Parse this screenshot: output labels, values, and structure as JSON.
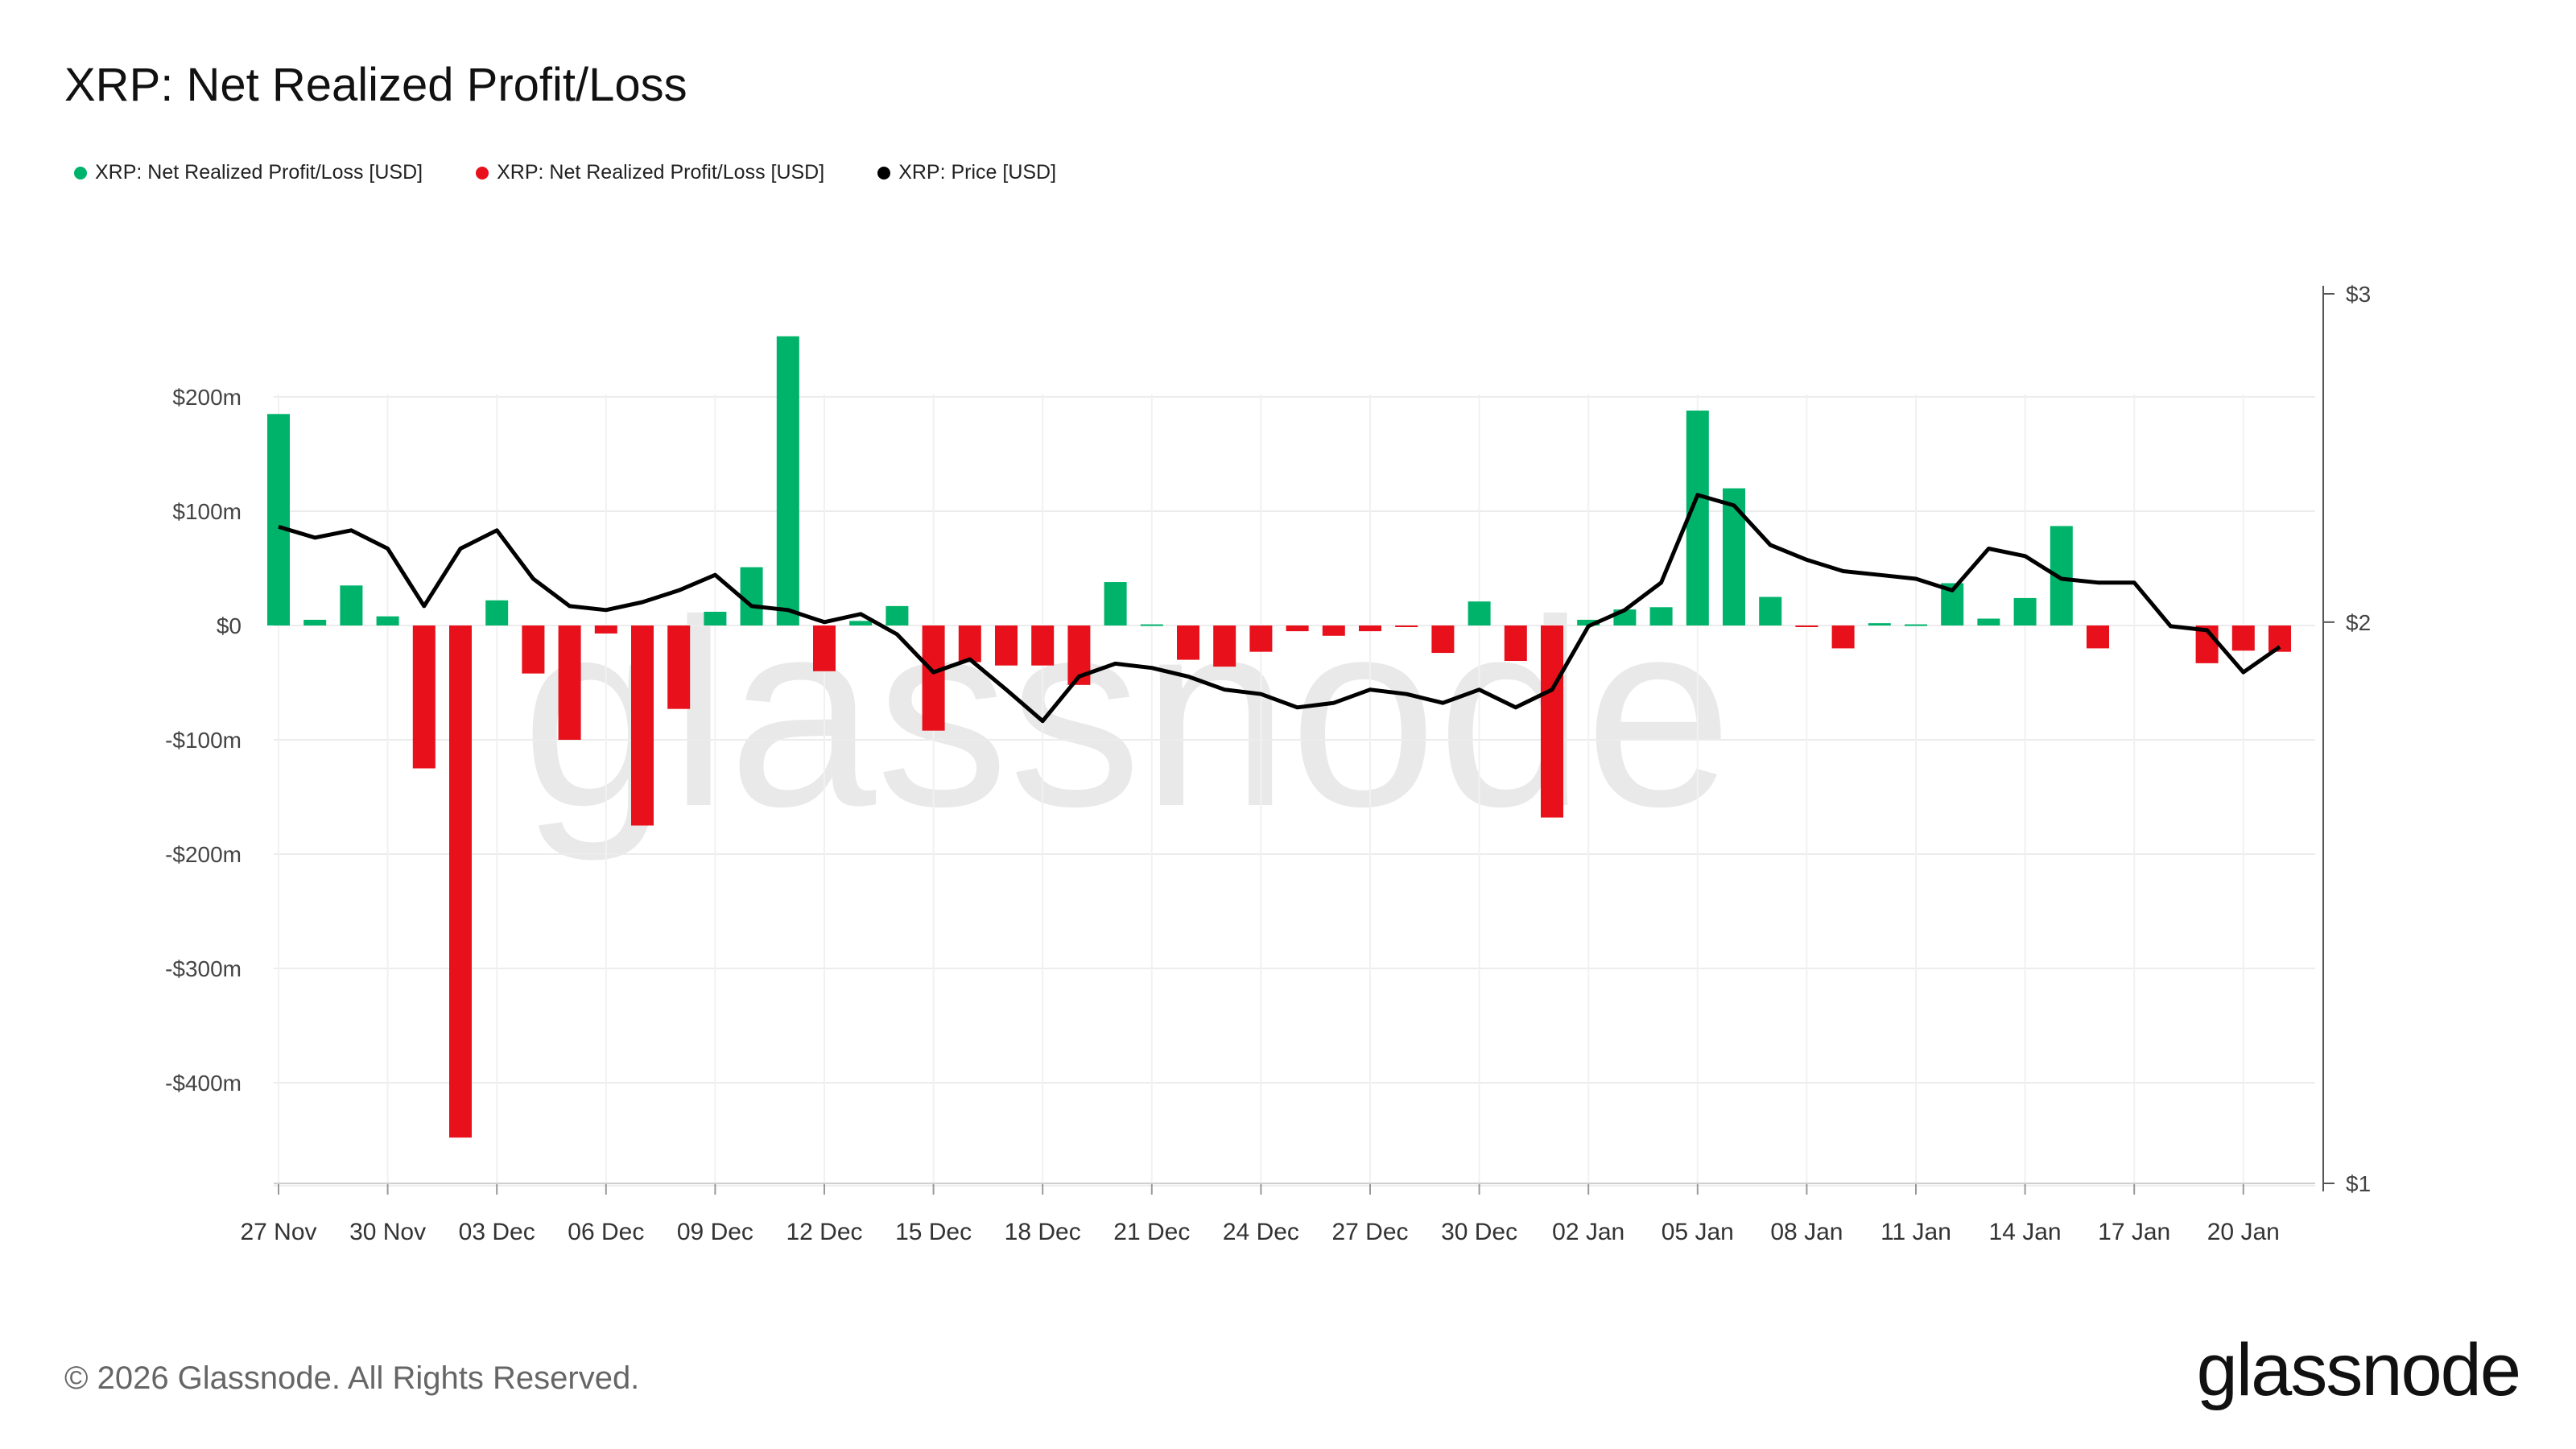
{
  "title": "XRP: Net Realized Profit/Loss",
  "legend": [
    {
      "label": "XRP: Net Realized Profit/Loss [USD]",
      "color": "#00b36b"
    },
    {
      "label": "XRP: Net Realized Profit/Loss [USD]",
      "color": "#e8101a"
    },
    {
      "label": "XRP: Price [USD]",
      "color": "#000000"
    }
  ],
  "footer": "© 2026 Glassnode. All Rights Reserved.",
  "brand": "glassnode",
  "watermark": "glassnode",
  "chart_data": {
    "type": "bar",
    "left_axis": {
      "ticks": [
        200,
        100,
        0,
        -100,
        -200,
        -300,
        -400
      ],
      "tick_labels": [
        "$200m",
        "$100m",
        "$0",
        "-$100m",
        "-$200m",
        "-$300m",
        "-$400m"
      ],
      "range": [
        -490,
        300
      ]
    },
    "right_axis": {
      "scale": "log",
      "ticks": [
        3,
        2,
        1
      ],
      "tick_labels": [
        "$3",
        "$2",
        "$1"
      ],
      "range": [
        1,
        3
      ]
    },
    "x_tick_labels": [
      "27 Nov",
      "30 Nov",
      "03 Dec",
      "06 Dec",
      "09 Dec",
      "12 Dec",
      "15 Dec",
      "18 Dec",
      "21 Dec",
      "24 Dec",
      "27 Dec",
      "30 Dec",
      "02 Jan",
      "05 Jan",
      "08 Jan",
      "11 Jan",
      "14 Jan",
      "17 Jan",
      "20 Jan"
    ],
    "x_start": "2025-11-27",
    "grid": true,
    "colors": {
      "profit": "#00b36b",
      "loss": "#e8101a",
      "price": "#000000"
    },
    "net_pnl_musd": [
      185,
      5,
      35,
      8,
      -125,
      -448,
      22,
      -42,
      -100,
      -7,
      -175,
      -73,
      12,
      51,
      253,
      -40,
      4,
      17,
      -92,
      -32,
      -35,
      -35,
      -52,
      38,
      1,
      -30,
      -36,
      -23,
      -5,
      -9,
      -5,
      -1,
      -24,
      21,
      -31,
      -168,
      5,
      14,
      16,
      188,
      120,
      25,
      -1,
      -20,
      2,
      1,
      37,
      6,
      24,
      87,
      -20,
      0,
      0,
      -33,
      -22,
      -23
    ],
    "price_usd": [
      2.25,
      2.22,
      2.24,
      2.19,
      2.04,
      2.19,
      2.24,
      2.11,
      2.04,
      2.03,
      2.05,
      2.08,
      2.12,
      2.04,
      2.03,
      2.0,
      2.02,
      1.97,
      1.88,
      1.91,
      1.84,
      1.77,
      1.87,
      1.9,
      1.89,
      1.87,
      1.84,
      1.83,
      1.8,
      1.81,
      1.84,
      1.83,
      1.81,
      1.84,
      1.8,
      1.84,
      1.99,
      2.03,
      2.1,
      2.34,
      2.31,
      2.2,
      2.16,
      2.13,
      2.12,
      2.11,
      2.08,
      2.19,
      2.17,
      2.11,
      2.1,
      2.1,
      1.99,
      1.98,
      1.88,
      1.94
    ]
  }
}
